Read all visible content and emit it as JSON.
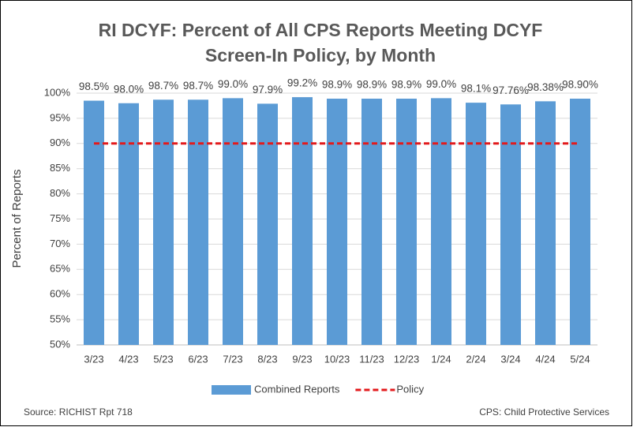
{
  "chart_data": {
    "type": "bar",
    "title": "RI DCYF: Percent of All CPS Reports Meeting DCYF Screen-In Policy, by Month",
    "y_label": "Percent of Reports",
    "categories": [
      "3/23",
      "4/23",
      "5/23",
      "6/23",
      "7/23",
      "8/23",
      "9/23",
      "10/23",
      "11/23",
      "12/23",
      "1/24",
      "2/24",
      "3/24",
      "4/24",
      "5/24"
    ],
    "series": [
      {
        "name": "Combined Reports",
        "color": "#5b9bd5",
        "type": "bar",
        "values": [
          98.5,
          98.0,
          98.7,
          98.7,
          99.0,
          97.9,
          99.2,
          98.9,
          98.9,
          98.9,
          99.0,
          98.1,
          97.76,
          98.38,
          98.9
        ],
        "value_labels": [
          "98.5%",
          "98.0%",
          "98.7%",
          "98.7%",
          "99.0%",
          "97.9%",
          "99.2%",
          "98.9%",
          "98.9%",
          "98.9%",
          "99.0%",
          "98.1%",
          "97.76%",
          "98.38%",
          "98.90%"
        ]
      },
      {
        "name": "Policy",
        "color": "#e31a1c",
        "type": "line",
        "dashed": true,
        "values": [
          90,
          90,
          90,
          90,
          90,
          90,
          90,
          90,
          90,
          90,
          90,
          90,
          90,
          90,
          90
        ]
      }
    ],
    "ylim": [
      50,
      100
    ],
    "yticks": [
      {
        "value": 50,
        "label": "50%"
      },
      {
        "value": 55,
        "label": "55%"
      },
      {
        "value": 60,
        "label": "60%"
      },
      {
        "value": 65,
        "label": "65%"
      },
      {
        "value": 70,
        "label": "70%"
      },
      {
        "value": 75,
        "label": "75%"
      },
      {
        "value": 80,
        "label": "80%"
      },
      {
        "value": 85,
        "label": "85%"
      },
      {
        "value": 90,
        "label": "90%"
      },
      {
        "value": 95,
        "label": "95%"
      },
      {
        "value": 100,
        "label": "100%"
      }
    ],
    "grid": true,
    "legend": "bottom",
    "notes": [
      "Source: RICHIST Rpt 718",
      "CPS: Child Protective Services"
    ]
  }
}
